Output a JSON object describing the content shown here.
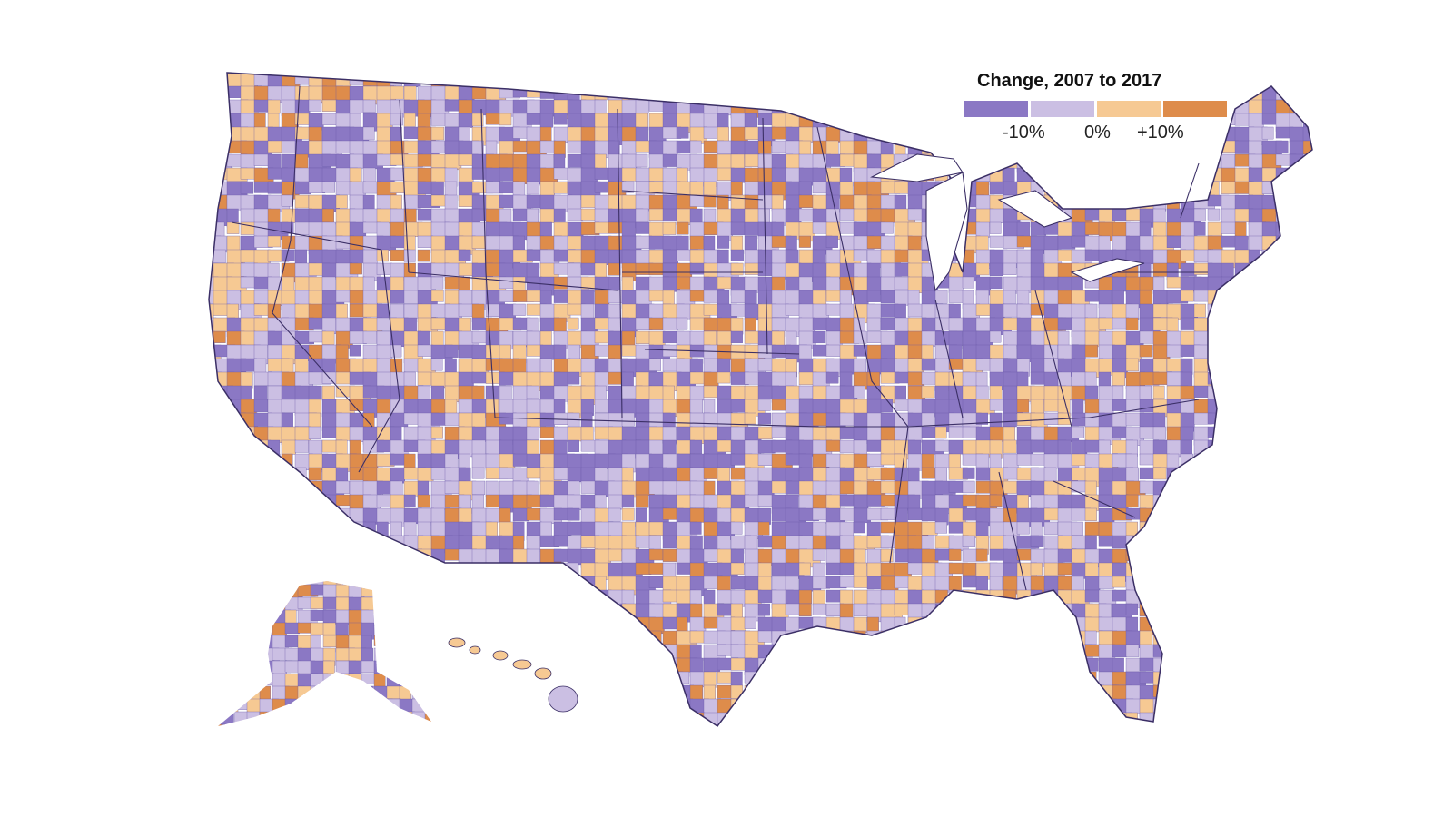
{
  "legend": {
    "title": "Change, 2007 to 2017",
    "ticks": [
      "-10%",
      "0%",
      "+10%"
    ],
    "colors": [
      "#8b78c4",
      "#cbbfe3",
      "#f6c993",
      "#de8c4b"
    ]
  },
  "map": {
    "type": "choropleth",
    "regions": [
      "contiguous-us",
      "alaska",
      "hawaii"
    ],
    "borders": "#3b2f66"
  }
}
